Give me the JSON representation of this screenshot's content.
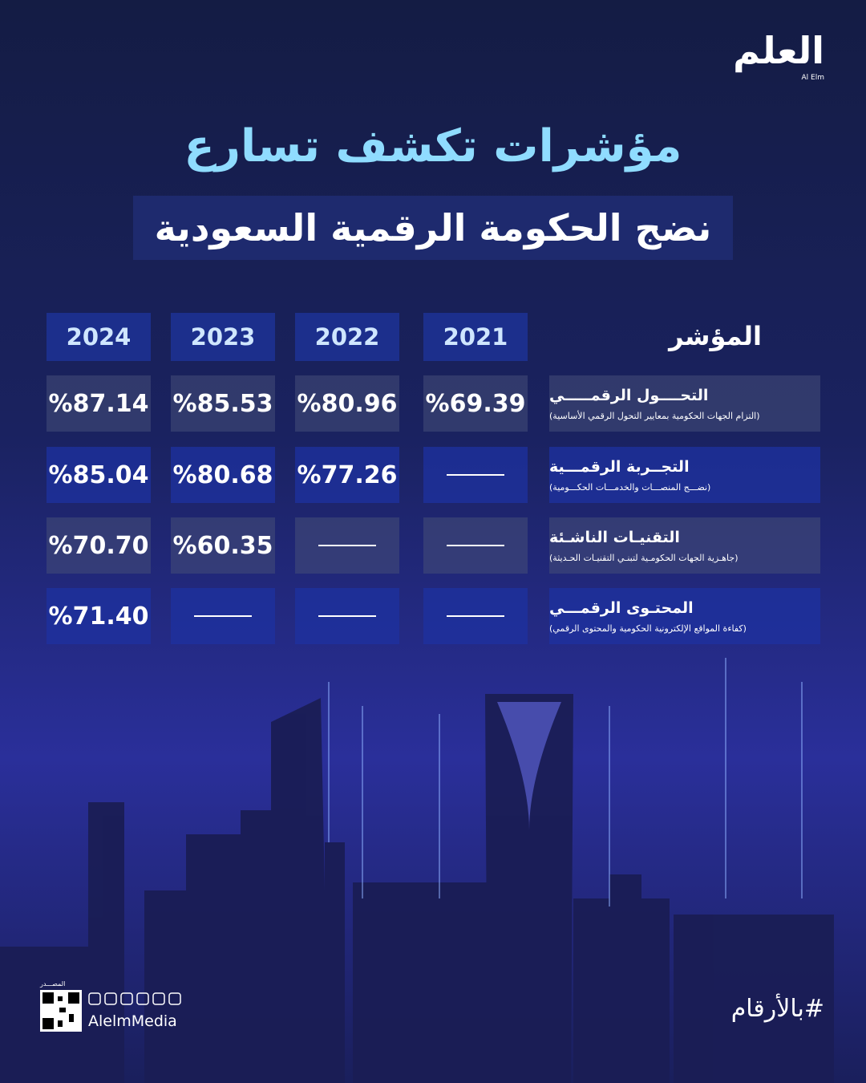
{
  "header": {
    "logo": "العلم",
    "logo_sub": "Al Elm"
  },
  "title": "مؤشرات تكشف تسارع",
  "subtitle": "نضج الحكومة الرقمية السعودية",
  "table": {
    "columns": [
      "المؤشر",
      "2021",
      "2022",
      "2023",
      "2024"
    ],
    "rows": [
      {
        "label": "التحــــول الرقمـــــي",
        "note": "(التزام الجهات الحكومية بمعايير التحول الرقمي الأساسية)",
        "cells": [
          "%69.39",
          "%80.96",
          "%85.53",
          "%87.14"
        ]
      },
      {
        "label": "التجــربة الرقمـــية",
        "note": "(نضـــج المنصـــات والخدمـــات الحكـــومية)",
        "cells": [
          null,
          "%77.26",
          "%80.68",
          "%85.04"
        ]
      },
      {
        "label": "التقنيـات الناشـئة",
        "note": "(جاهـزية الجهات الحكومـية لتبنـي التقنيـات الحـديثة)",
        "cells": [
          null,
          null,
          "%60.35",
          "%70.70"
        ]
      },
      {
        "label": "المحتـوى الرقمـــي",
        "note": "(كفاءة المواقع الإلكترونية الحكومية والمحتوى الرقمي)",
        "cells": [
          null,
          null,
          null,
          "%71.40"
        ]
      }
    ]
  },
  "footer": {
    "source_label": "المصـــدر",
    "handle": "AlelmMedia",
    "hashtag": "#بالأرقام"
  }
}
